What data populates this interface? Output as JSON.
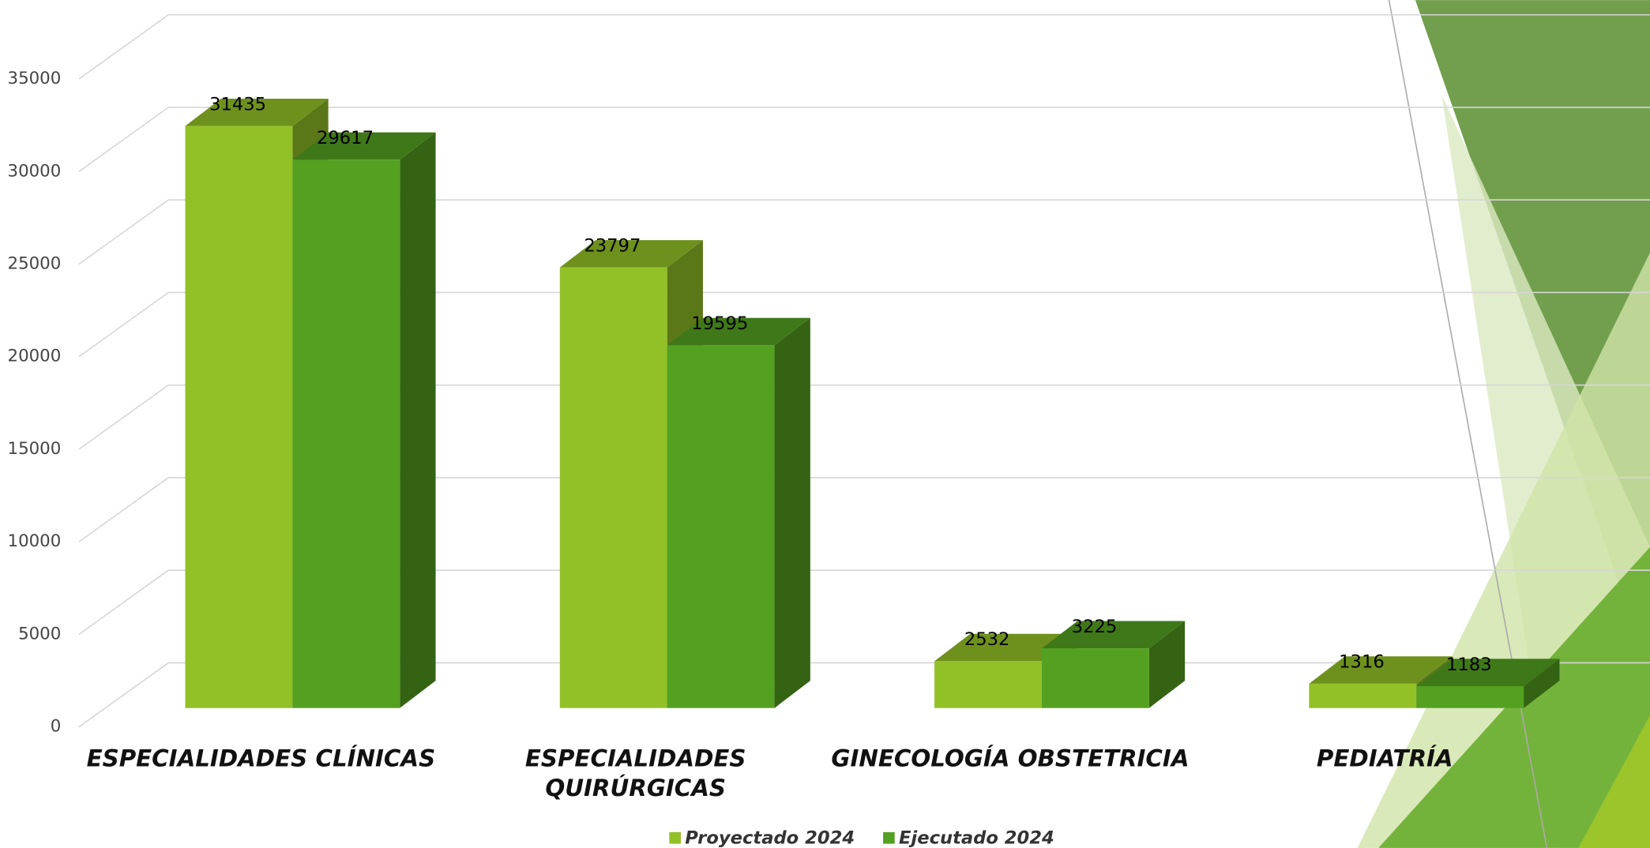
{
  "chart_data": {
    "type": "bar3d",
    "categories": [
      [
        "ESPECIALIDADES CLÍNICAS"
      ],
      [
        "ESPECIALIDADES",
        "QUIRÚRGICAS"
      ],
      [
        "GINECOLOGÍA OBSTETRICIA"
      ],
      [
        "PEDIATRÍA"
      ]
    ],
    "series": [
      {
        "name": "Proyectado  2024",
        "color": "#92c127",
        "values": [
          31435,
          23797,
          2532,
          1316
        ]
      },
      {
        "name": "Ejecutado 2024",
        "color": "#54a021",
        "values": [
          29617,
          19595,
          3225,
          1183
        ]
      }
    ],
    "ylim": [
      0,
      35000
    ],
    "yticks": [
      0,
      5000,
      10000,
      15000,
      20000,
      25000,
      30000,
      35000
    ],
    "grid": true,
    "legend": "bottom"
  }
}
